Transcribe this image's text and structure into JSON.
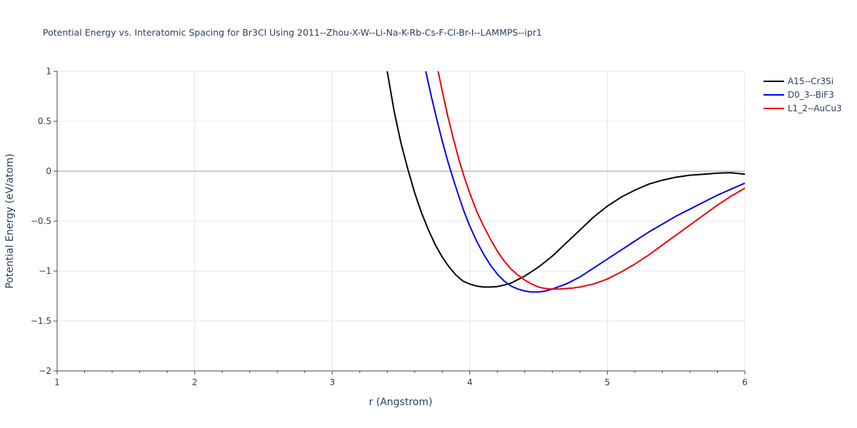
{
  "chart_data": {
    "type": "line",
    "title": "Potential Energy vs. Interatomic Spacing for Br3Cl Using 2011--Zhou-X-W--Li-Na-K-Rb-Cs-F-Cl-Br-I--LAMMPS--ipr1",
    "xlabel": "r (Angstrom)",
    "ylabel": "Potential Energy (eV/atom)",
    "xlim": [
      1,
      6
    ],
    "ylim": [
      -2,
      1
    ],
    "xticks": [
      1,
      2,
      3,
      4,
      5,
      6
    ],
    "xtick_labels": [
      "1",
      "2",
      "3",
      "4",
      "5",
      "6"
    ],
    "yticks": [
      -2,
      -1.5,
      -1,
      -0.5,
      0,
      0.5,
      1
    ],
    "ytick_labels": [
      "−2",
      "−1.5",
      "−1",
      "−0.5",
      "0",
      "0.5",
      "1"
    ],
    "grid": true,
    "legend_position": "top-right",
    "series": [
      {
        "name": "A15--Cr3Si",
        "color": "#000000",
        "x": [
          3.4,
          3.45,
          3.5,
          3.55,
          3.6,
          3.65,
          3.7,
          3.75,
          3.8,
          3.85,
          3.9,
          3.95,
          4.0,
          4.05,
          4.1,
          4.15,
          4.2,
          4.25,
          4.3,
          4.4,
          4.5,
          4.6,
          4.7,
          4.8,
          4.9,
          5.0,
          5.1,
          5.2,
          5.3,
          5.4,
          5.5,
          5.6,
          5.7,
          5.8,
          5.9,
          6.0
        ],
        "y": [
          1.0,
          0.6,
          0.28,
          0.02,
          -0.22,
          -0.42,
          -0.59,
          -0.74,
          -0.86,
          -0.96,
          -1.04,
          -1.1,
          -1.13,
          -1.15,
          -1.16,
          -1.16,
          -1.155,
          -1.14,
          -1.12,
          -1.05,
          -0.96,
          -0.85,
          -0.72,
          -0.59,
          -0.46,
          -0.35,
          -0.26,
          -0.19,
          -0.13,
          -0.09,
          -0.06,
          -0.04,
          -0.03,
          -0.02,
          -0.015,
          -0.03
        ]
      },
      {
        "name": "D0_3--BiF3",
        "color": "#0000ee",
        "x": [
          3.68,
          3.72,
          3.76,
          3.8,
          3.84,
          3.88,
          3.92,
          3.96,
          4.0,
          4.05,
          4.1,
          4.15,
          4.2,
          4.25,
          4.3,
          4.35,
          4.4,
          4.45,
          4.5,
          4.55,
          4.6,
          4.7,
          4.8,
          4.9,
          5.0,
          5.1,
          5.2,
          5.3,
          5.4,
          5.5,
          5.6,
          5.7,
          5.8,
          5.9,
          6.0
        ],
        "y": [
          1.0,
          0.75,
          0.52,
          0.3,
          0.1,
          -0.08,
          -0.25,
          -0.41,
          -0.55,
          -0.7,
          -0.83,
          -0.94,
          -1.03,
          -1.1,
          -1.15,
          -1.18,
          -1.2,
          -1.21,
          -1.21,
          -1.2,
          -1.18,
          -1.13,
          -1.06,
          -0.97,
          -0.88,
          -0.79,
          -0.7,
          -0.61,
          -0.53,
          -0.45,
          -0.38,
          -0.31,
          -0.24,
          -0.18,
          -0.12
        ]
      },
      {
        "name": "L1_2--AuCu3",
        "color": "#ee0000",
        "x": [
          3.77,
          3.8,
          3.84,
          3.88,
          3.92,
          3.96,
          4.0,
          4.05,
          4.1,
          4.15,
          4.2,
          4.25,
          4.3,
          4.35,
          4.4,
          4.45,
          4.5,
          4.55,
          4.6,
          4.65,
          4.7,
          4.75,
          4.8,
          4.9,
          5.0,
          5.1,
          5.2,
          5.3,
          5.4,
          5.5,
          5.6,
          5.7,
          5.8,
          5.9,
          6.0
        ],
        "y": [
          1.0,
          0.8,
          0.55,
          0.33,
          0.12,
          -0.06,
          -0.22,
          -0.4,
          -0.55,
          -0.68,
          -0.8,
          -0.9,
          -0.98,
          -1.04,
          -1.09,
          -1.13,
          -1.16,
          -1.175,
          -1.18,
          -1.18,
          -1.175,
          -1.17,
          -1.16,
          -1.13,
          -1.08,
          -1.01,
          -0.93,
          -0.84,
          -0.74,
          -0.64,
          -0.54,
          -0.44,
          -0.34,
          -0.25,
          -0.17
        ]
      }
    ]
  }
}
